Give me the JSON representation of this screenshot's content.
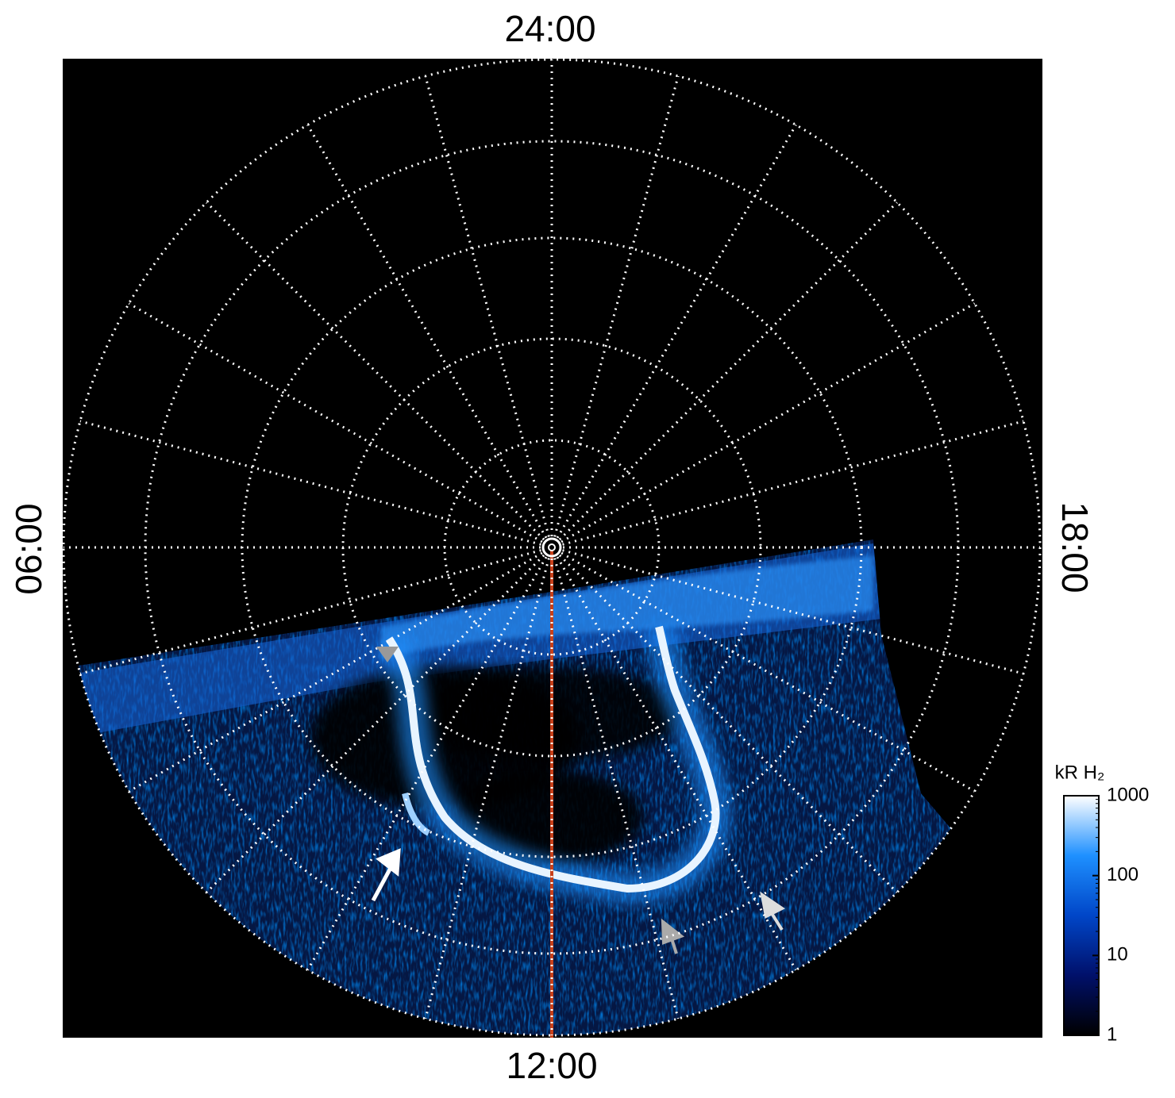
{
  "chart_data": {
    "type": "polar-image",
    "direction_labels": {
      "top": "24:00",
      "left": "06:00",
      "bottom": "12:00",
      "right": "18:00"
    },
    "colorbar": {
      "label": "kR H₂",
      "scale": "log",
      "ylim": [
        1,
        1000
      ],
      "yticks": [
        1,
        10,
        100,
        1000
      ],
      "colors": [
        "#000000",
        "#00106a",
        "#0046c8",
        "#1e90ff",
        "#ffffff"
      ]
    }
  }
}
